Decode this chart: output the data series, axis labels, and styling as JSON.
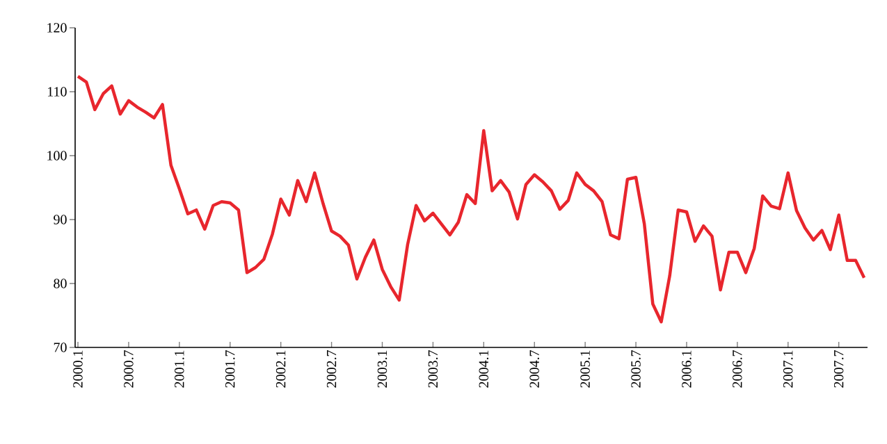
{
  "chart_data": {
    "type": "line",
    "categories": [
      "2000.1",
      null,
      null,
      null,
      null,
      null,
      "2000.7",
      null,
      null,
      null,
      null,
      null,
      "2001.1",
      null,
      null,
      null,
      null,
      null,
      "2001.7",
      null,
      null,
      null,
      null,
      null,
      "2002.1",
      null,
      null,
      null,
      null,
      null,
      "2002.7",
      null,
      null,
      null,
      null,
      null,
      "2003.1",
      null,
      null,
      null,
      null,
      null,
      "2003.7",
      null,
      null,
      null,
      null,
      null,
      "2004.1",
      null,
      null,
      null,
      null,
      null,
      "2004.7",
      null,
      null,
      null,
      null,
      null,
      "2005.1",
      null,
      null,
      null,
      null,
      null,
      "2005.7",
      null,
      null,
      null,
      null,
      null,
      "2006.1",
      null,
      null,
      null,
      null,
      null,
      "2006.7",
      null,
      null,
      null,
      null,
      null,
      "2007.1",
      null,
      null,
      null,
      null,
      null,
      "2007.7",
      null,
      null,
      null
    ],
    "values": [
      112.4,
      111.5,
      107.2,
      109.7,
      110.9,
      106.5,
      108.6,
      107.6,
      106.8,
      105.9,
      108.0,
      98.5,
      94.8,
      90.9,
      91.5,
      88.5,
      92.2,
      92.8,
      92.6,
      91.5,
      81.7,
      82.5,
      83.8,
      87.7,
      93.2,
      90.7,
      96.1,
      92.8,
      97.3,
      92.5,
      88.2,
      87.4,
      86.0,
      80.7,
      84.1,
      86.8,
      82.2,
      79.5,
      77.4,
      86.1,
      92.2,
      89.8,
      91.0,
      89.3,
      87.6,
      89.6,
      93.9,
      92.5,
      103.9,
      94.5,
      96.1,
      94.3,
      90.1,
      95.5,
      97.0,
      95.9,
      94.5,
      91.6,
      93.0,
      97.3,
      95.5,
      94.5,
      92.8,
      87.6,
      87.0,
      96.3,
      96.6,
      89.3,
      76.8,
      74.0,
      81.2,
      91.5,
      91.2,
      86.6,
      89.0,
      87.4,
      79.0,
      84.9,
      84.9,
      81.7,
      85.5,
      93.7,
      92.1,
      91.7,
      97.3,
      91.4,
      88.7,
      86.8,
      88.3,
      85.3,
      90.7,
      83.6,
      83.6,
      80.9
    ],
    "color": "#e8262d",
    "ylim": [
      70,
      120
    ],
    "yticks": [
      70,
      80,
      90,
      100,
      110,
      120
    ]
  }
}
